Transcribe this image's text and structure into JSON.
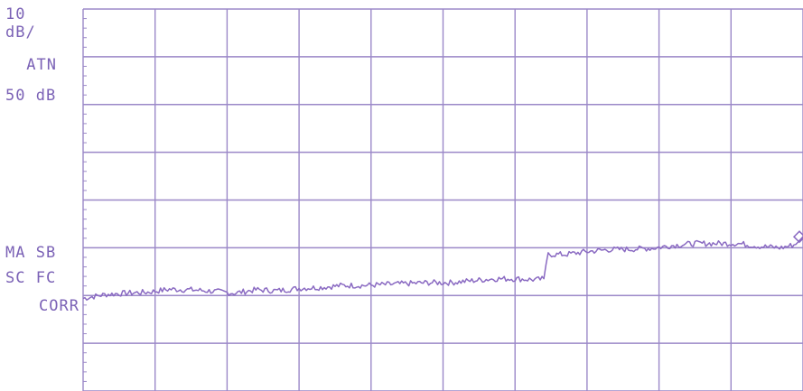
{
  "instrument": {
    "scale": "10",
    "scale_unit": "dB/",
    "atten_label": "ATN",
    "atten_value": "50 dB",
    "flags_line1": "MA SB",
    "flags_line2": "SC FC",
    "flags_line3": "CORR"
  },
  "colors": {
    "trace": "#8a6ac2",
    "grid": "#9b88c8",
    "text": "#7b62b6",
    "background": "#ffffff"
  },
  "chart_data": {
    "type": "line",
    "title": "",
    "xlabel": "",
    "ylabel": "",
    "grid": true,
    "x_divisions": 10,
    "y_divisions": 8,
    "xlim": [
      0,
      10
    ],
    "ylim": [
      -80,
      0
    ],
    "y_units": "dB",
    "series": [
      {
        "x": [
          0.0,
          0.3,
          0.6,
          0.9,
          1.2,
          1.5,
          1.8,
          2.1,
          2.4,
          2.7,
          3.0,
          3.3,
          3.6,
          3.9,
          4.2,
          4.5,
          4.8,
          5.1,
          5.4,
          5.7,
          6.0,
          6.3,
          6.4,
          6.43,
          6.46,
          6.7,
          7.0,
          7.3,
          7.6,
          7.9,
          8.2,
          8.5,
          8.8,
          9.1,
          9.4,
          9.7,
          9.9,
          10.0
        ],
        "y": [
          -60.6,
          -59.8,
          -59.5,
          -59.3,
          -58.7,
          -58.8,
          -59.1,
          -59.5,
          -58.8,
          -59.0,
          -58.5,
          -58.3,
          -57.9,
          -57.9,
          -57.7,
          -57.5,
          -57.3,
          -57.3,
          -56.9,
          -56.5,
          -56.5,
          -56.7,
          -56.5,
          -53.5,
          -51.4,
          -51.4,
          -50.8,
          -50.4,
          -50.3,
          -50.1,
          -49.5,
          -49.1,
          -49.1,
          -49.1,
          -49.7,
          -50.0,
          -49.3,
          -47.7
        ]
      }
    ]
  }
}
